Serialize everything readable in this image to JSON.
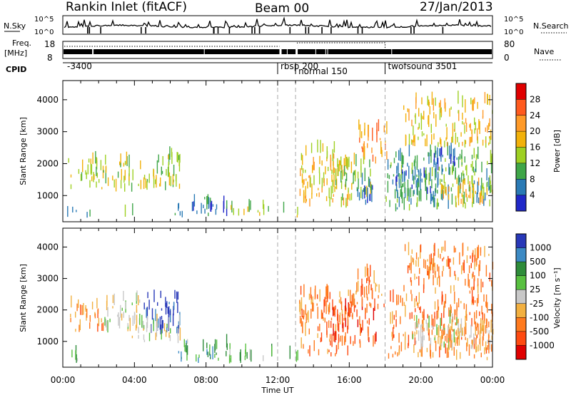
{
  "header": {
    "station": "Rankin Inlet (fitACF)",
    "beam": "Beam 00",
    "date": "27/Jan/2013"
  },
  "meta_panel": {
    "nsky_label": "N.Sky",
    "nsearch_label": "N.Search",
    "freq_label_1": "Freq.",
    "freq_label_2": "[MHz]",
    "nave_label": "Nave",
    "cpid_label": "CPID",
    "noise_ticks": [
      "10^5",
      "10^0"
    ],
    "freq_ticks": [
      "18",
      "8"
    ],
    "nave_ticks": [
      "80",
      "0"
    ],
    "cpid_segments": [
      {
        "label": "-3400",
        "start_hour": 0.0
      },
      {
        "label": "rbsp 200",
        "start_hour": 12.0
      },
      {
        "label": "normal 150",
        "start_hour": 13.0
      },
      {
        "label": "twofsound 3501",
        "start_hour": 18.0
      }
    ]
  },
  "chart_data": [
    {
      "type": "heatmap",
      "name": "power",
      "xlabel": "Time UT",
      "ylabel": "Slant Range [km]",
      "x_range_hours": [
        0,
        24
      ],
      "xticks": [
        "00:00",
        "04:00",
        "08:00",
        "12:00",
        "16:00",
        "20:00",
        "00:00"
      ],
      "ylim": [
        180,
        4600
      ],
      "yticks": [
        1000,
        2000,
        3000,
        4000
      ],
      "colorbar_label": "Power [dB]",
      "colorbar_ticks": [
        "28",
        "24",
        "20",
        "16",
        "12",
        "8",
        "4"
      ],
      "colorbar_colors": [
        "#e00000",
        "#ff5a1e",
        "#ff9a28",
        "#f2b10a",
        "#9ed022",
        "#3fa648",
        "#2a7ab5",
        "#2028c8"
      ],
      "vlines_hours": [
        12,
        13,
        18
      ],
      "scatter_regions": [
        {
          "t": [
            0.3,
            2.0
          ],
          "r": [
            1200,
            2100
          ],
          "class": 4
        },
        {
          "t": [
            2.0,
            3.9
          ],
          "r": [
            1100,
            2000
          ],
          "class": 4
        },
        {
          "t": [
            4.2,
            6.6
          ],
          "r": [
            1150,
            2250
          ],
          "class": 4
        },
        {
          "t": [
            0.2,
            1.5
          ],
          "r": [
            300,
            500
          ],
          "class": 5
        },
        {
          "t": [
            3.0,
            4.0
          ],
          "r": [
            300,
            420
          ],
          "class": 5
        },
        {
          "t": [
            6.1,
            9.6
          ],
          "r": [
            300,
            650
          ],
          "class": 6
        },
        {
          "t": [
            7.2,
            8.4
          ],
          "r": [
            550,
            900
          ],
          "class": 5
        },
        {
          "t": [
            9.3,
            11.8
          ],
          "r": [
            300,
            600
          ],
          "class": 4
        },
        {
          "t": [
            12.3,
            13.1
          ],
          "r": [
            300,
            500
          ],
          "class": 4
        },
        {
          "t": [
            13.2,
            16.0
          ],
          "r": [
            600,
            2400
          ],
          "class": 3
        },
        {
          "t": [
            15.0,
            17.2
          ],
          "r": [
            800,
            2000
          ],
          "class": 4
        },
        {
          "t": [
            16.0,
            17.4
          ],
          "r": [
            700,
            1400
          ],
          "class": 6
        },
        {
          "t": [
            16.5,
            18.1
          ],
          "r": [
            2000,
            3100
          ],
          "class": 2
        },
        {
          "t": [
            18.0,
            24.0
          ],
          "r": [
            500,
            2300
          ],
          "class": 5
        },
        {
          "t": [
            18.5,
            21.0
          ],
          "r": [
            900,
            1800
          ],
          "class": 6
        },
        {
          "t": [
            20.5,
            22.0
          ],
          "r": [
            1500,
            2300
          ],
          "class": 6
        },
        {
          "t": [
            21.0,
            24.0
          ],
          "r": [
            600,
            1400
          ],
          "class": 3
        },
        {
          "t": [
            19.0,
            24.0
          ],
          "r": [
            2500,
            3900
          ],
          "class": 3
        }
      ]
    },
    {
      "type": "heatmap",
      "name": "velocity",
      "xlabel": "Time UT",
      "ylabel": "Slant Range [km]",
      "x_range_hours": [
        0,
        24
      ],
      "xticks": [
        "00:00",
        "04:00",
        "08:00",
        "12:00",
        "16:00",
        "20:00",
        "00:00"
      ],
      "ylim": [
        180,
        4600
      ],
      "yticks": [
        1000,
        2000,
        3000,
        4000
      ],
      "colorbar_label": "Velocity [m s⁻¹]",
      "colorbar_ticks": [
        "1000",
        "500",
        "100",
        "25",
        "-25",
        "-100",
        "-500",
        "-1000"
      ],
      "colorbar_colors": [
        "#2838b8",
        "#3c8ac4",
        "#2e8c3a",
        "#58c040",
        "#c8c8c8",
        "#f2b040",
        "#ff7a1e",
        "#ff4a10",
        "#e00000"
      ],
      "vlines_hours": [
        12,
        13,
        18
      ],
      "scatter_regions": [
        {
          "t": [
            0.3,
            2.3
          ],
          "r": [
            1300,
            2100
          ],
          "class": 6
        },
        {
          "t": [
            2.3,
            4.3
          ],
          "r": [
            1100,
            2300
          ],
          "class": 4
        },
        {
          "t": [
            4.5,
            6.6
          ],
          "r": [
            1200,
            2400
          ],
          "class": 0
        },
        {
          "t": [
            4.2,
            7.0
          ],
          "r": [
            900,
            1500
          ],
          "class": 4
        },
        {
          "t": [
            0.2,
            1.5
          ],
          "r": [
            300,
            500
          ],
          "class": 3
        },
        {
          "t": [
            6.2,
            9.5
          ],
          "r": [
            300,
            850
          ],
          "class": 2
        },
        {
          "t": [
            9.3,
            11.8
          ],
          "r": [
            300,
            600
          ],
          "class": 3
        },
        {
          "t": [
            12.3,
            13.1
          ],
          "r": [
            300,
            500
          ],
          "class": 3
        },
        {
          "t": [
            13.2,
            16.0
          ],
          "r": [
            500,
            2500
          ],
          "class": 6
        },
        {
          "t": [
            15.0,
            17.5
          ],
          "r": [
            800,
            2100
          ],
          "class": 7
        },
        {
          "t": [
            16.0,
            18.0
          ],
          "r": [
            2000,
            3100
          ],
          "class": 6
        },
        {
          "t": [
            18.1,
            24.0
          ],
          "r": [
            400,
            2300
          ],
          "class": 6
        },
        {
          "t": [
            19.5,
            22.5
          ],
          "r": [
            700,
            1600
          ],
          "class": 4
        },
        {
          "t": [
            21.0,
            24.0
          ],
          "r": [
            600,
            1400
          ],
          "class": 5
        },
        {
          "t": [
            19.0,
            24.0
          ],
          "r": [
            2500,
            3900
          ],
          "class": 6
        }
      ]
    }
  ]
}
